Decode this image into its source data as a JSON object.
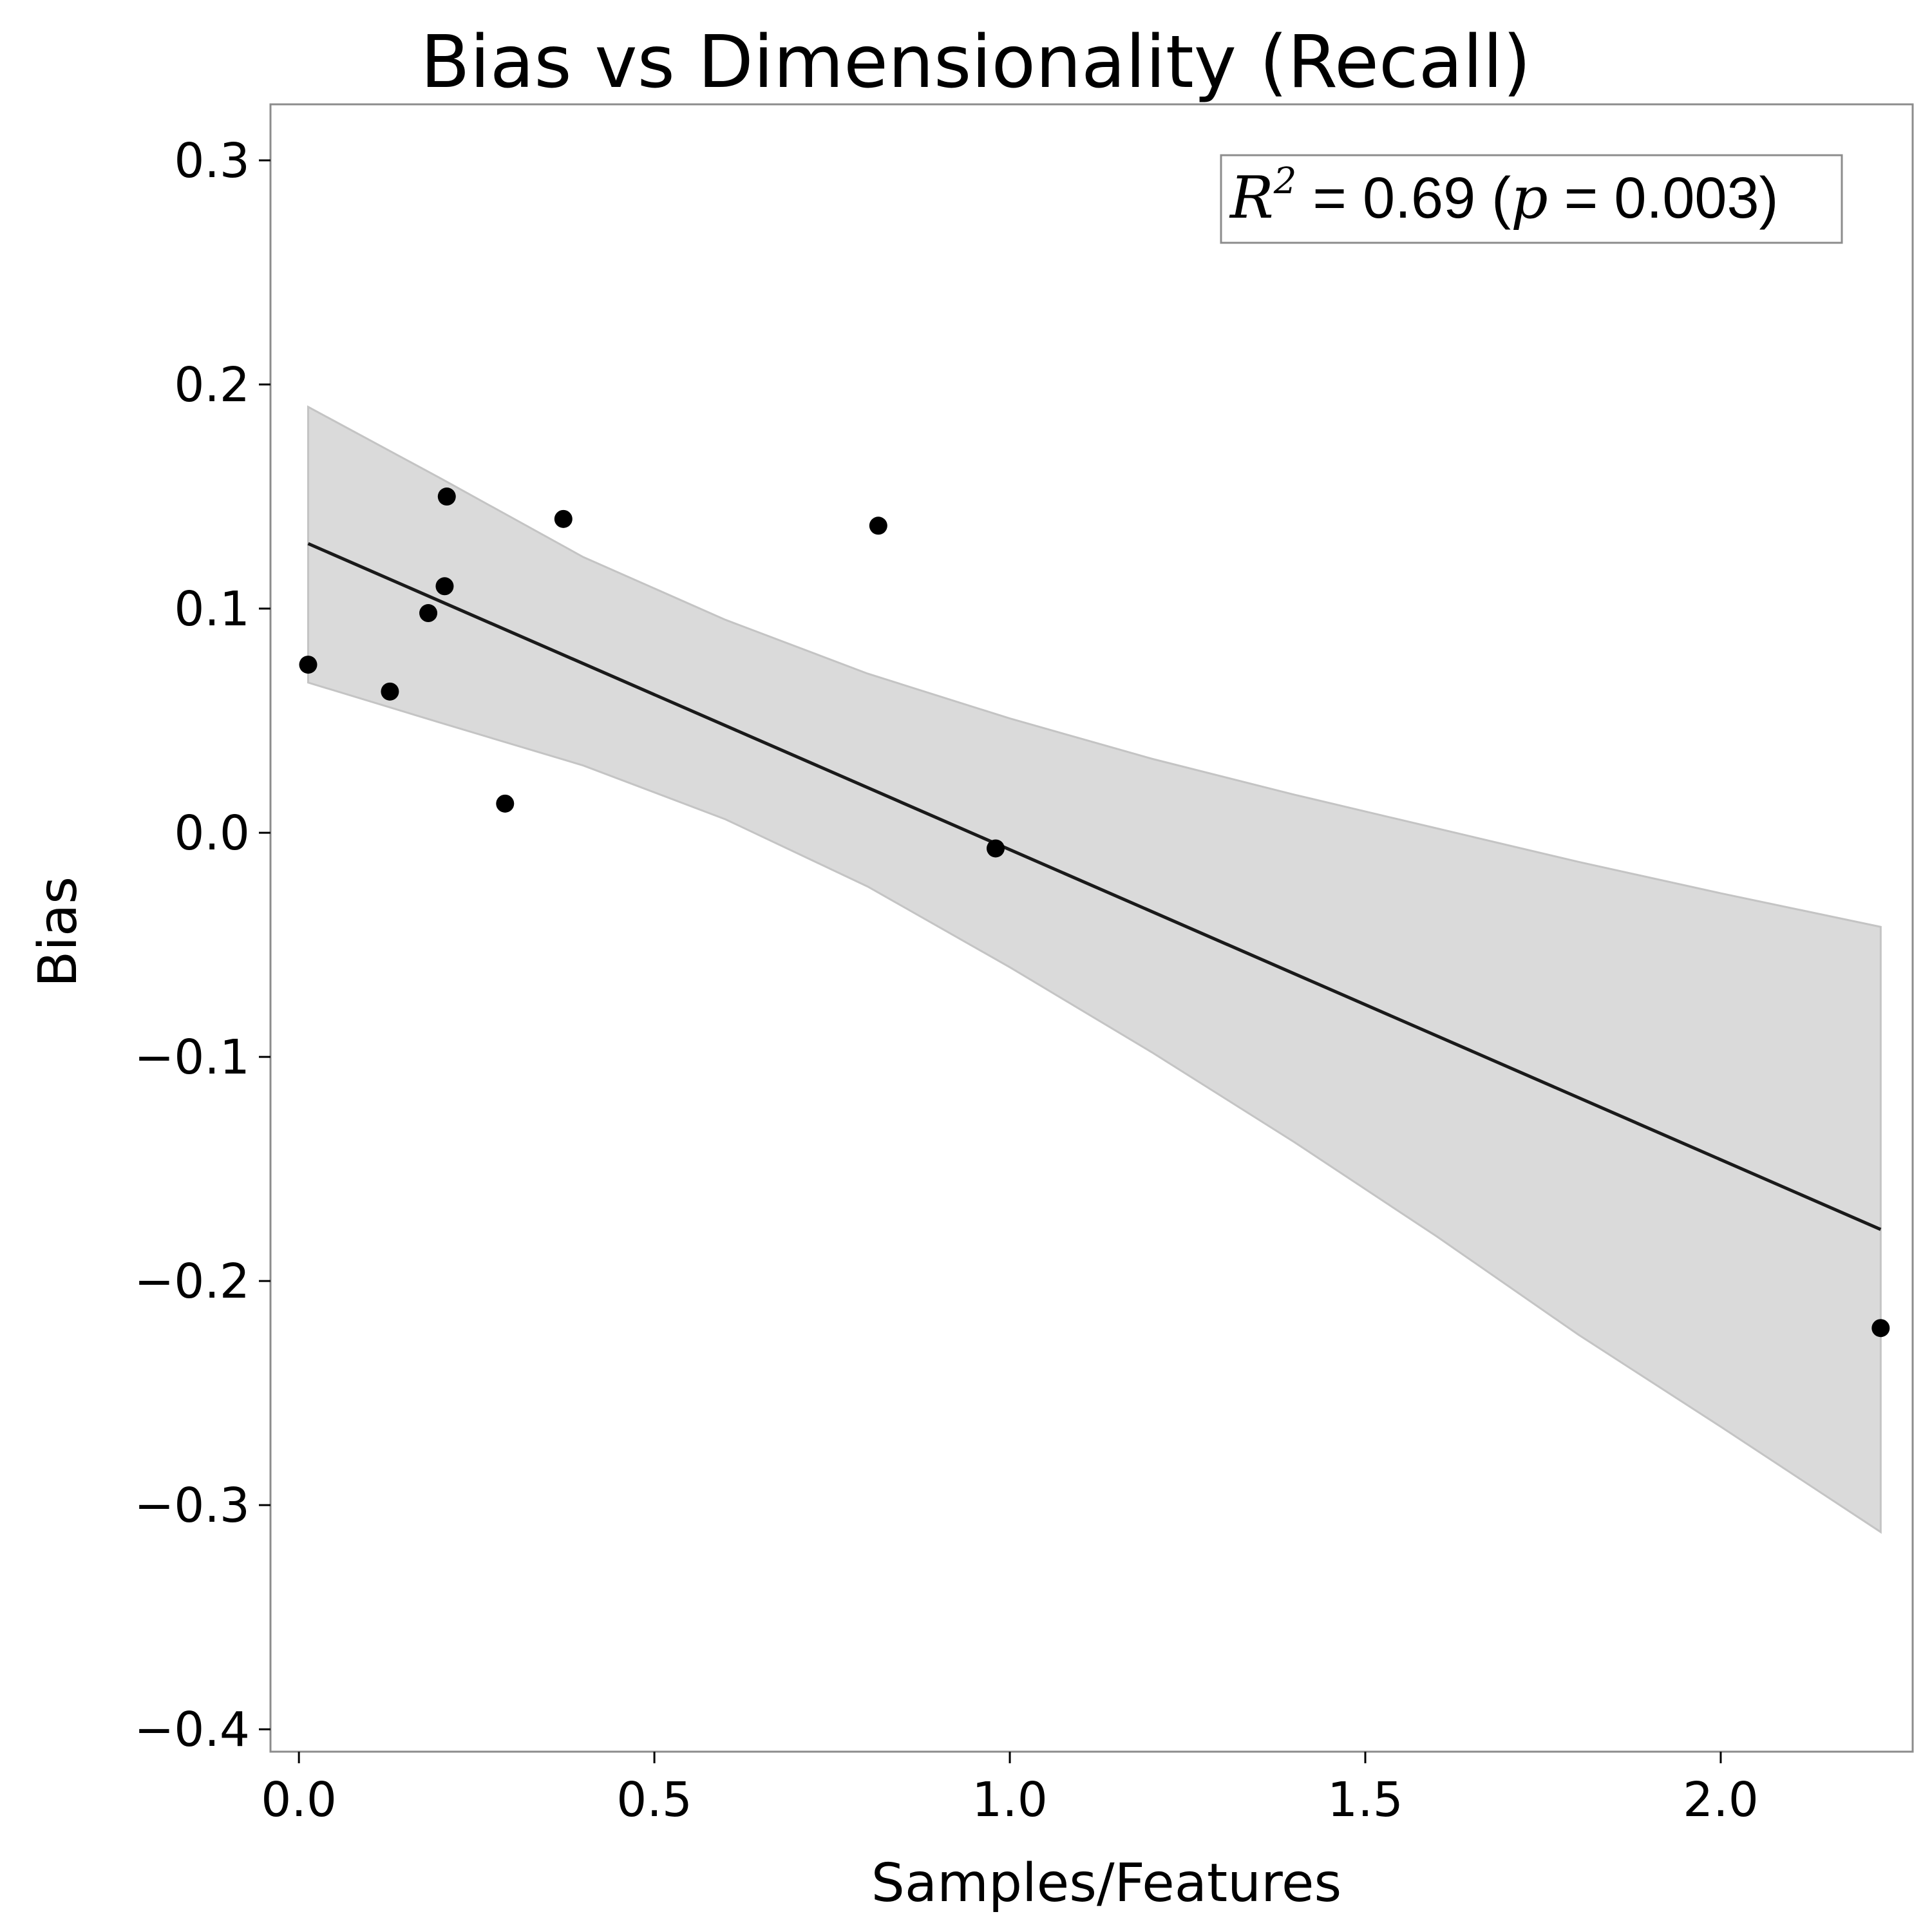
{
  "chart_data": {
    "type": "scatter",
    "title": "Bias vs Dimensionality (Recall)",
    "xlabel": "Samples/Features",
    "ylabel": "Bias",
    "xlim": [
      -0.04,
      2.27
    ],
    "ylim": [
      -0.41,
      0.325
    ],
    "xticks": [
      0.0,
      0.5,
      1.0,
      1.5,
      2.0
    ],
    "xtick_labels": [
      "0.0",
      "0.5",
      "1.0",
      "1.5",
      "2.0"
    ],
    "yticks": [
      0.3,
      0.2,
      0.1,
      0.0,
      -0.1,
      -0.2,
      -0.3,
      -0.4
    ],
    "ytick_labels": [
      "0.3",
      "0.2",
      "0.1",
      "0.0",
      "−0.1",
      "−0.2",
      "−0.3",
      "−0.4"
    ],
    "grid": false,
    "points": [
      {
        "x": 0.013,
        "y": 0.075
      },
      {
        "x": 0.128,
        "y": 0.063
      },
      {
        "x": 0.182,
        "y": 0.098
      },
      {
        "x": 0.205,
        "y": 0.11
      },
      {
        "x": 0.208,
        "y": 0.15
      },
      {
        "x": 0.29,
        "y": 0.013
      },
      {
        "x": 0.372,
        "y": 0.14
      },
      {
        "x": 0.815,
        "y": 0.137
      },
      {
        "x": 0.98,
        "y": -0.007
      },
      {
        "x": 2.225,
        "y": -0.221
      }
    ],
    "fit_line": {
      "x": [
        0.013,
        2.225
      ],
      "y": [
        0.129,
        -0.177
      ]
    },
    "confidence_band": {
      "x": [
        0.013,
        0.2,
        0.4,
        0.6,
        0.8,
        1.0,
        1.2,
        1.4,
        1.6,
        1.8,
        2.0,
        2.225
      ],
      "upper": [
        0.19,
        0.158,
        0.123,
        0.095,
        0.071,
        0.051,
        0.033,
        0.017,
        0.002,
        -0.013,
        -0.027,
        -0.042
      ],
      "lower": [
        0.067,
        0.049,
        0.03,
        0.006,
        -0.024,
        -0.06,
        -0.098,
        -0.138,
        -0.18,
        -0.224,
        -0.265,
        -0.312
      ]
    },
    "annotation": {
      "prefix_symbol": "R",
      "superscript": "2",
      "mid_text": " = 0.69 (",
      "p_symbol": "p",
      "suffix_text": " = 0.003)",
      "placement": "top-right"
    },
    "colors": {
      "points": "#000000",
      "fit_line": "#1a1a1a",
      "band_fill": "#dadada",
      "band_edge": "#c4c4c4",
      "frame": "#8c8c8c"
    }
  }
}
